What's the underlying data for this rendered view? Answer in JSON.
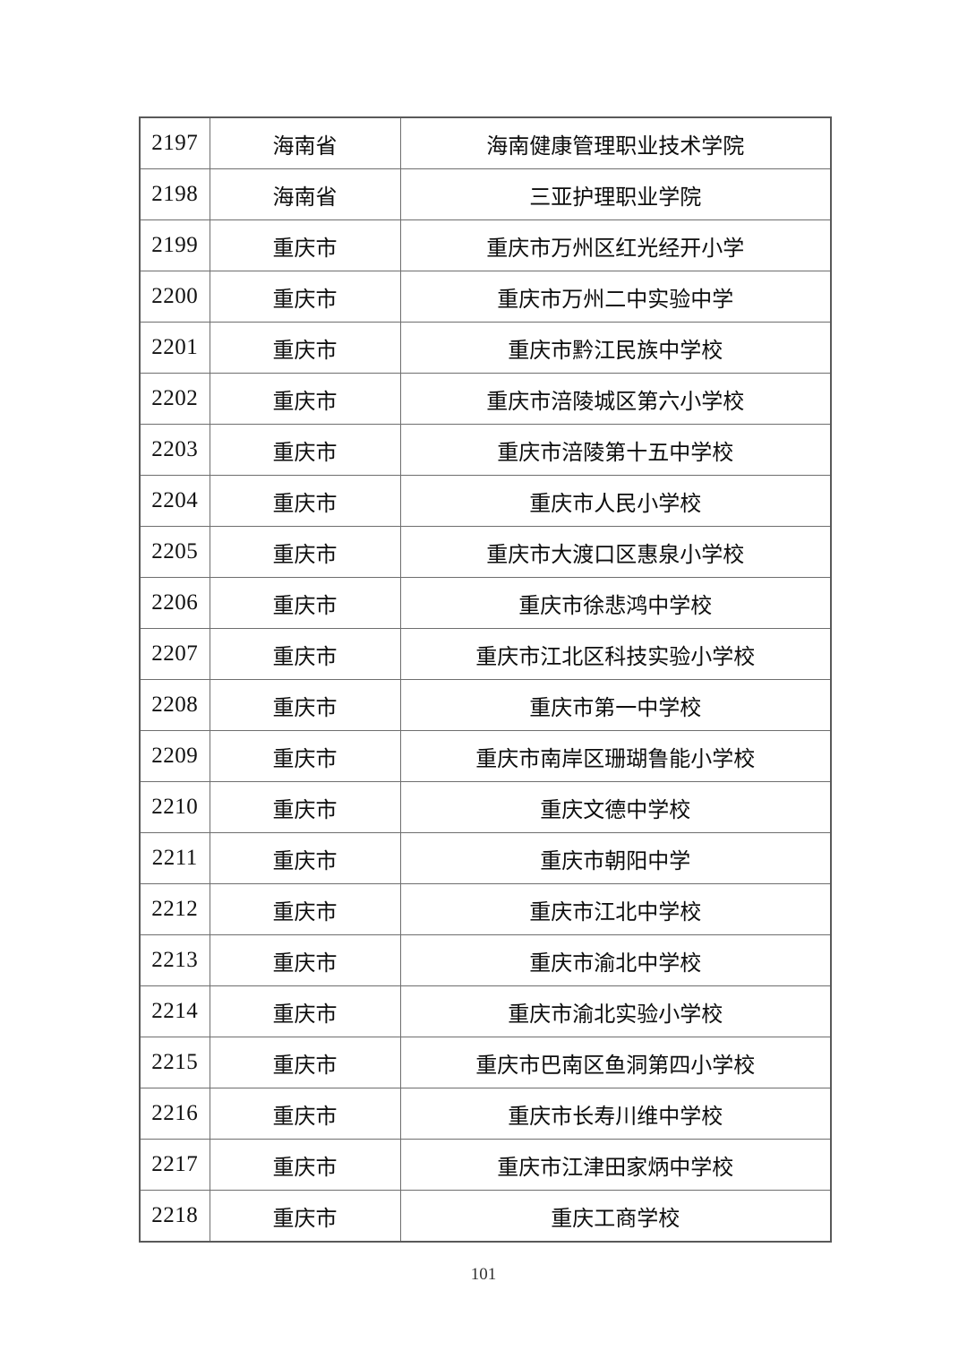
{
  "page": {
    "number": "101",
    "background_color": "#ffffff",
    "table_border_color": "#595959",
    "text_color": "#111111"
  },
  "table": {
    "columns": [
      "serial",
      "province",
      "school"
    ],
    "rows": [
      {
        "serial": "2197",
        "province": "海南省",
        "school": "海南健康管理职业技术学院"
      },
      {
        "serial": "2198",
        "province": "海南省",
        "school": "三亚护理职业学院"
      },
      {
        "serial": "2199",
        "province": "重庆市",
        "school": "重庆市万州区红光经开小学"
      },
      {
        "serial": "2200",
        "province": "重庆市",
        "school": "重庆市万州二中实验中学"
      },
      {
        "serial": "2201",
        "province": "重庆市",
        "school": "重庆市黔江民族中学校"
      },
      {
        "serial": "2202",
        "province": "重庆市",
        "school": "重庆市涪陵城区第六小学校"
      },
      {
        "serial": "2203",
        "province": "重庆市",
        "school": "重庆市涪陵第十五中学校"
      },
      {
        "serial": "2204",
        "province": "重庆市",
        "school": "重庆市人民小学校"
      },
      {
        "serial": "2205",
        "province": "重庆市",
        "school": "重庆市大渡口区惠泉小学校"
      },
      {
        "serial": "2206",
        "province": "重庆市",
        "school": "重庆市徐悲鸿中学校"
      },
      {
        "serial": "2207",
        "province": "重庆市",
        "school": "重庆市江北区科技实验小学校"
      },
      {
        "serial": "2208",
        "province": "重庆市",
        "school": "重庆市第一中学校"
      },
      {
        "serial": "2209",
        "province": "重庆市",
        "school": "重庆市南岸区珊瑚鲁能小学校"
      },
      {
        "serial": "2210",
        "province": "重庆市",
        "school": "重庆文德中学校"
      },
      {
        "serial": "2211",
        "province": "重庆市",
        "school": "重庆市朝阳中学"
      },
      {
        "serial": "2212",
        "province": "重庆市",
        "school": "重庆市江北中学校"
      },
      {
        "serial": "2213",
        "province": "重庆市",
        "school": "重庆市渝北中学校"
      },
      {
        "serial": "2214",
        "province": "重庆市",
        "school": "重庆市渝北实验小学校"
      },
      {
        "serial": "2215",
        "province": "重庆市",
        "school": "重庆市巴南区鱼洞第四小学校"
      },
      {
        "serial": "2216",
        "province": "重庆市",
        "school": "重庆市长寿川维中学校"
      },
      {
        "serial": "2217",
        "province": "重庆市",
        "school": "重庆市江津田家炳中学校"
      },
      {
        "serial": "2218",
        "province": "重庆市",
        "school": "重庆工商学校"
      }
    ]
  }
}
